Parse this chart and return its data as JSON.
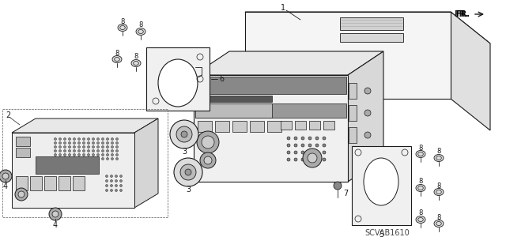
{
  "bg_color": "#ffffff",
  "line_color": "#1a1a1a",
  "watermark": "SCVAB1610",
  "fr_label": "FR.",
  "lw": 0.7
}
